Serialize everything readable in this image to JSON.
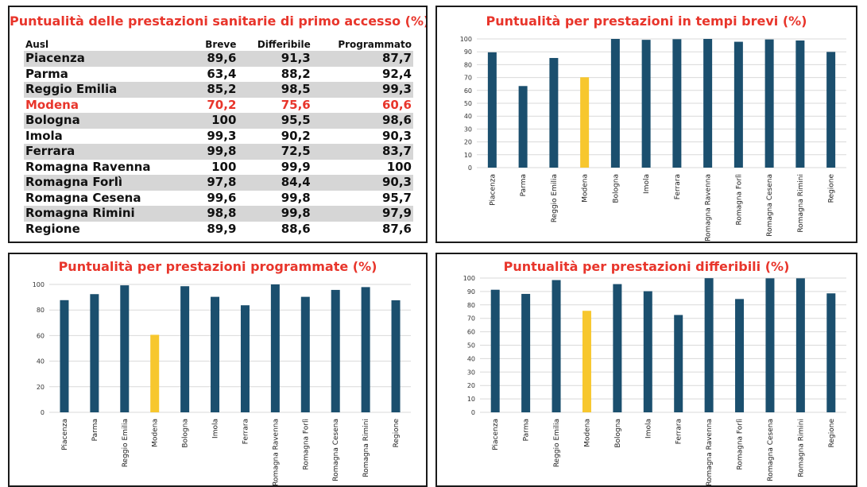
{
  "table": {
    "title": "Puntualità delle prestazioni sanitarie di primo accesso (%)",
    "headers": [
      "Ausl",
      "Breve",
      "Differibile",
      "Programmato"
    ],
    "highlight_row": "Modena",
    "highlight_color": "#e8352b",
    "rows": [
      [
        "Piacenza",
        "89,6",
        "91,3",
        "87,7"
      ],
      [
        "Parma",
        "63,4",
        "88,2",
        "92,4"
      ],
      [
        "Reggio Emilia",
        "85,2",
        "98,5",
        "99,3"
      ],
      [
        "Modena",
        "70,2",
        "75,6",
        "60,6"
      ],
      [
        "Bologna",
        "100",
        "95,5",
        "98,6"
      ],
      [
        "Imola",
        "99,3",
        "90,2",
        "90,3"
      ],
      [
        "Ferrara",
        "99,8",
        "72,5",
        "83,7"
      ],
      [
        "Romagna Ravenna",
        "100",
        "99,9",
        "100"
      ],
      [
        "Romagna Forlì",
        "97,8",
        "84,4",
        "90,3"
      ],
      [
        "Romagna Cesena",
        "99,6",
        "99,8",
        "95,7"
      ],
      [
        "Romagna Rimini",
        "98,8",
        "99,8",
        "97,9"
      ],
      [
        "Regione",
        "89,9",
        "88,6",
        "87,6"
      ]
    ]
  },
  "colors": {
    "bar": "#1b4f6e",
    "highlight_bar": "#f7c72e",
    "title": "#e8352b"
  },
  "chart_data": [
    {
      "type": "bar",
      "title": "Puntualità per prestazioni in tempi brevi (%)",
      "categories": [
        "Piacenza",
        "Parma",
        "Reggio Emilia",
        "Modena",
        "Bologna",
        "Imola",
        "Ferrara",
        "Romagna Ravenna",
        "Romagna Forlì",
        "Romagna Cesena",
        "Romagna Rimini",
        "Regione"
      ],
      "values": [
        89.6,
        63.4,
        85.2,
        70.2,
        100,
        99.3,
        99.8,
        100,
        97.8,
        99.6,
        98.8,
        89.9
      ],
      "highlight_category": "Modena",
      "ylim": [
        0,
        100
      ],
      "yticks": [
        "0",
        "10",
        "20",
        "30",
        "40",
        "50",
        "60",
        "70",
        "80",
        "90",
        "100"
      ],
      "grid": true
    },
    {
      "type": "bar",
      "title": "Puntualità per prestazioni programmate (%)",
      "categories": [
        "Piacenza",
        "Parma",
        "Reggio Emilia",
        "Modena",
        "Bologna",
        "Imola",
        "Ferrara",
        "Romagna Ravenna",
        "Romagna Forlì",
        "Romagna Cesena",
        "Romagna Rimini",
        "Regione"
      ],
      "values": [
        87.7,
        92.4,
        99.3,
        60.6,
        98.6,
        90.3,
        83.7,
        100,
        90.3,
        95.7,
        97.9,
        87.6
      ],
      "highlight_category": "Modena",
      "ylim": [
        0,
        100
      ],
      "yticks": [
        "0",
        "20",
        "40",
        "60",
        "80",
        "100"
      ],
      "grid": true
    },
    {
      "type": "bar",
      "title": "Puntualità per prestazioni differibili (%)",
      "categories": [
        "Piacenza",
        "Parma",
        "Reggio Emilia",
        "Modena",
        "Bologna",
        "Imola",
        "Ferrara",
        "Romagna Ravenna",
        "Romagna Forlì",
        "Romagna Cesena",
        "Romagna Rimini",
        "Regione"
      ],
      "values": [
        91.3,
        88.2,
        98.5,
        75.6,
        95.5,
        90.2,
        72.5,
        99.9,
        84.4,
        99.8,
        99.8,
        88.6
      ],
      "highlight_category": "Modena",
      "ylim": [
        0,
        100
      ],
      "yticks": [
        "0",
        "10",
        "20",
        "30",
        "40",
        "50",
        "60",
        "70",
        "80",
        "90",
        "100"
      ],
      "grid": true
    }
  ]
}
